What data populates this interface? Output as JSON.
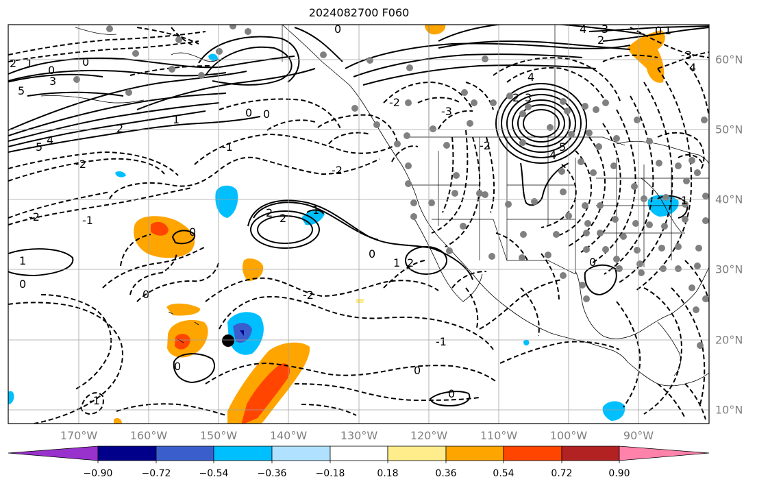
{
  "title": "2024082700 F060",
  "map": {
    "projection": "Plate Carree",
    "lon_range": [
      -180,
      -80
    ],
    "lat_range": [
      8,
      65
    ],
    "grid": true,
    "lon_labels": [
      "170°W",
      "160°W",
      "150°W",
      "140°W",
      "130°W",
      "120°W",
      "110°W",
      "100°W",
      "90°W"
    ],
    "lat_labels": [
      "60°N",
      "50°N",
      "40°N",
      "30°N",
      "20°N",
      "10°N"
    ],
    "contour_color": "#000000",
    "station_color": "#808080",
    "marker_color": "#000000",
    "marker": {
      "lon": -148.5,
      "lat": 20
    }
  },
  "colorbar": {
    "orientation": "horizontal",
    "extend": "both",
    "colors": [
      "#9932cc",
      "#00008b",
      "#3a5fcd",
      "#00bfff",
      "#b0e2ff",
      "#ffffff",
      "#ffec8b",
      "#ffa500",
      "#ff4500",
      "#b22222",
      "#ff82ab"
    ],
    "tick_labels": [
      "−0.90",
      "−0.72",
      "−0.54",
      "−0.36",
      "−0.18",
      "0.18",
      "0.36",
      "0.54",
      "0.72",
      "0.90"
    ]
  },
  "contour_labels": [
    "2",
    "1",
    "0",
    "3",
    "5",
    "4",
    "-1",
    "-2",
    "-3"
  ]
}
